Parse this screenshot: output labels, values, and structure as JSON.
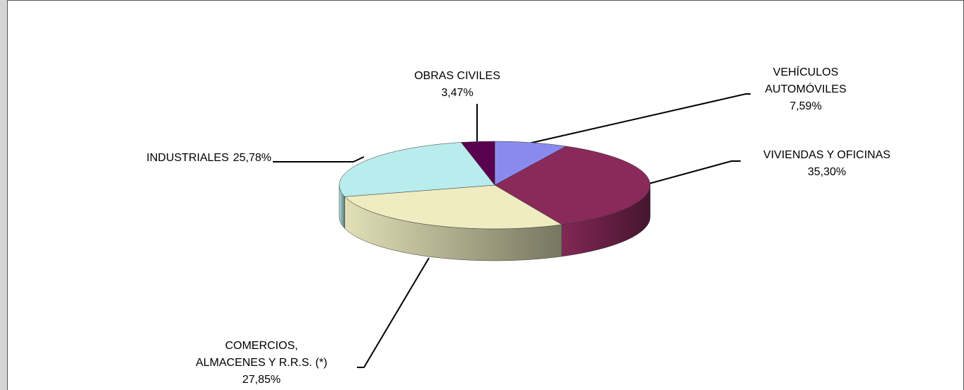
{
  "chart_data": {
    "type": "pie",
    "categories": [
      "VEHÍCULOS\nAUTOMÓVILES",
      "VIVIENDAS Y OFICINAS",
      "COMERCIOS,\nALMACENES Y R.R.S. (*)",
      "INDUSTRIALES",
      "OBRAS CIVILES"
    ],
    "values": [
      7.59,
      35.3,
      27.85,
      25.78,
      3.47
    ],
    "value_labels": [
      "7,59%",
      "35,30%",
      "27,85%",
      "25,78%",
      "3,47%"
    ],
    "colors": [
      "#8a8aee",
      "#8a2a5a",
      "#eeecc0",
      "#b9ecec",
      "#5a0050"
    ]
  }
}
